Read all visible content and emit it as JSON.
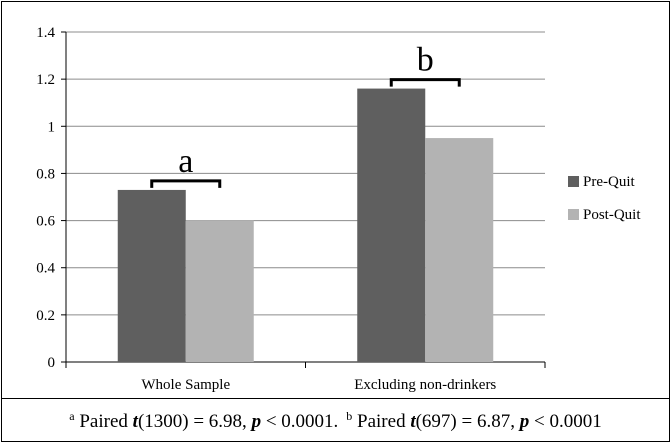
{
  "chart_data": {
    "type": "bar",
    "categories": [
      "Whole Sample",
      "Excluding non-drinkers"
    ],
    "series": [
      {
        "name": "Pre-Quit",
        "values": [
          0.73,
          1.16
        ],
        "color": "#5f5f5f"
      },
      {
        "name": "Post-Quit",
        "values": [
          0.6,
          0.95
        ],
        "color": "#b3b3b3"
      }
    ],
    "ylim": [
      0,
      1.4
    ],
    "yticks": [
      "0",
      "0.2",
      "0.4",
      "0.6",
      "0.8",
      "1",
      "1.2",
      "1.4"
    ],
    "grid": true,
    "legend": "right",
    "annotations": [
      "a",
      "b"
    ]
  },
  "caption": {
    "a": {
      "marker": "a",
      "prefix": "Paired ",
      "stat": "t",
      "df": "(1300) = 6.98, ",
      "p": "p",
      "tail": " < 0.0001."
    },
    "b": {
      "marker": "b",
      "prefix": "Paired ",
      "stat": "t",
      "df": "(697) = 6.87, ",
      "p": "p",
      "tail": " < 0.0001"
    }
  }
}
